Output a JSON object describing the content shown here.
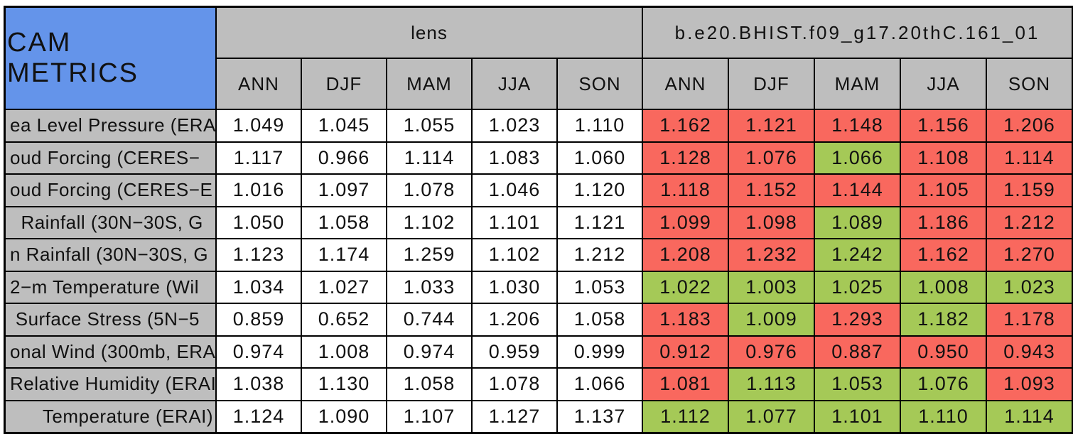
{
  "colors": {
    "title_bg": "#6494ea",
    "header_bg": "#bebebe",
    "white": "#ffffff",
    "red": "#f9685e",
    "green": "#a5c957",
    "border": "#000000",
    "text": "#111111"
  },
  "chart_data": {
    "type": "table",
    "title": "CAM METRICS",
    "column_groups": [
      "lens",
      "b.e20.BHIST.f09_g17.20thC.161_01"
    ],
    "seasons": [
      "ANN",
      "DJF",
      "MAM",
      "JJA",
      "SON"
    ],
    "rows": [
      {
        "label": "ea Level Pressure (ERA",
        "cells": [
          {
            "v": "1.049",
            "bg": "white"
          },
          {
            "v": "1.045",
            "bg": "white"
          },
          {
            "v": "1.055",
            "bg": "white"
          },
          {
            "v": "1.023",
            "bg": "white"
          },
          {
            "v": "1.110",
            "bg": "white"
          },
          {
            "v": "1.162",
            "bg": "red"
          },
          {
            "v": "1.121",
            "bg": "red"
          },
          {
            "v": "1.148",
            "bg": "red"
          },
          {
            "v": "1.156",
            "bg": "red"
          },
          {
            "v": "1.206",
            "bg": "red"
          }
        ]
      },
      {
        "label": "oud Forcing (CERES−",
        "cells": [
          {
            "v": "1.117",
            "bg": "white"
          },
          {
            "v": "0.966",
            "bg": "white"
          },
          {
            "v": "1.114",
            "bg": "white"
          },
          {
            "v": "1.083",
            "bg": "white"
          },
          {
            "v": "1.060",
            "bg": "white"
          },
          {
            "v": "1.128",
            "bg": "red"
          },
          {
            "v": "1.076",
            "bg": "red"
          },
          {
            "v": "1.066",
            "bg": "green"
          },
          {
            "v": "1.108",
            "bg": "red"
          },
          {
            "v": "1.114",
            "bg": "red"
          }
        ]
      },
      {
        "label": "oud Forcing (CERES−E",
        "cells": [
          {
            "v": "1.016",
            "bg": "white"
          },
          {
            "v": "1.097",
            "bg": "white"
          },
          {
            "v": "1.078",
            "bg": "white"
          },
          {
            "v": "1.046",
            "bg": "white"
          },
          {
            "v": "1.120",
            "bg": "white"
          },
          {
            "v": "1.118",
            "bg": "red"
          },
          {
            "v": "1.152",
            "bg": "red"
          },
          {
            "v": "1.144",
            "bg": "red"
          },
          {
            "v": "1.105",
            "bg": "red"
          },
          {
            "v": "1.159",
            "bg": "red"
          }
        ]
      },
      {
        "label": "  Rainfall (30N−30S, G",
        "cells": [
          {
            "v": "1.050",
            "bg": "white"
          },
          {
            "v": "1.058",
            "bg": "white"
          },
          {
            "v": "1.102",
            "bg": "white"
          },
          {
            "v": "1.101",
            "bg": "white"
          },
          {
            "v": "1.121",
            "bg": "white"
          },
          {
            "v": "1.099",
            "bg": "red"
          },
          {
            "v": "1.098",
            "bg": "red"
          },
          {
            "v": "1.089",
            "bg": "green"
          },
          {
            "v": "1.186",
            "bg": "red"
          },
          {
            "v": "1.212",
            "bg": "red"
          }
        ]
      },
      {
        "label": "n Rainfall (30N−30S, G",
        "cells": [
          {
            "v": "1.123",
            "bg": "white"
          },
          {
            "v": "1.174",
            "bg": "white"
          },
          {
            "v": "1.259",
            "bg": "white"
          },
          {
            "v": "1.102",
            "bg": "white"
          },
          {
            "v": "1.212",
            "bg": "white"
          },
          {
            "v": "1.208",
            "bg": "red"
          },
          {
            "v": "1.232",
            "bg": "red"
          },
          {
            "v": "1.242",
            "bg": "green"
          },
          {
            "v": "1.162",
            "bg": "red"
          },
          {
            "v": "1.270",
            "bg": "red"
          }
        ]
      },
      {
        "label": "2−m Temperature (Wil",
        "cells": [
          {
            "v": "1.034",
            "bg": "white"
          },
          {
            "v": "1.027",
            "bg": "white"
          },
          {
            "v": "1.033",
            "bg": "white"
          },
          {
            "v": "1.030",
            "bg": "white"
          },
          {
            "v": "1.053",
            "bg": "white"
          },
          {
            "v": "1.022",
            "bg": "green"
          },
          {
            "v": "1.003",
            "bg": "green"
          },
          {
            "v": "1.025",
            "bg": "green"
          },
          {
            "v": "1.008",
            "bg": "green"
          },
          {
            "v": "1.023",
            "bg": "green"
          }
        ]
      },
      {
        "label": " Surface Stress (5N−5",
        "cells": [
          {
            "v": "0.859",
            "bg": "white"
          },
          {
            "v": "0.652",
            "bg": "white"
          },
          {
            "v": "0.744",
            "bg": "white"
          },
          {
            "v": "1.206",
            "bg": "white"
          },
          {
            "v": "1.058",
            "bg": "white"
          },
          {
            "v": "1.183",
            "bg": "red"
          },
          {
            "v": "1.009",
            "bg": "green"
          },
          {
            "v": "1.293",
            "bg": "red"
          },
          {
            "v": "1.182",
            "bg": "green"
          },
          {
            "v": "1.178",
            "bg": "red"
          }
        ]
      },
      {
        "label": "onal Wind (300mb, ERA",
        "cells": [
          {
            "v": "0.974",
            "bg": "white"
          },
          {
            "v": "1.008",
            "bg": "white"
          },
          {
            "v": "0.974",
            "bg": "white"
          },
          {
            "v": "0.959",
            "bg": "white"
          },
          {
            "v": "0.999",
            "bg": "white"
          },
          {
            "v": "0.912",
            "bg": "red"
          },
          {
            "v": "0.976",
            "bg": "red"
          },
          {
            "v": "0.887",
            "bg": "red"
          },
          {
            "v": "0.950",
            "bg": "red"
          },
          {
            "v": "0.943",
            "bg": "red"
          }
        ]
      },
      {
        "label": "Relative Humidity (ERAI",
        "cells": [
          {
            "v": "1.038",
            "bg": "white"
          },
          {
            "v": "1.130",
            "bg": "white"
          },
          {
            "v": "1.058",
            "bg": "white"
          },
          {
            "v": "1.078",
            "bg": "white"
          },
          {
            "v": "1.066",
            "bg": "white"
          },
          {
            "v": "1.081",
            "bg": "red"
          },
          {
            "v": "1.113",
            "bg": "green"
          },
          {
            "v": "1.053",
            "bg": "green"
          },
          {
            "v": "1.076",
            "bg": "green"
          },
          {
            "v": "1.093",
            "bg": "red"
          }
        ]
      },
      {
        "label": "      Temperature (ERAI)",
        "cells": [
          {
            "v": "1.124",
            "bg": "white"
          },
          {
            "v": "1.090",
            "bg": "white"
          },
          {
            "v": "1.107",
            "bg": "white"
          },
          {
            "v": "1.127",
            "bg": "white"
          },
          {
            "v": "1.137",
            "bg": "white"
          },
          {
            "v": "1.112",
            "bg": "green"
          },
          {
            "v": "1.077",
            "bg": "green"
          },
          {
            "v": "1.101",
            "bg": "green"
          },
          {
            "v": "1.110",
            "bg": "green"
          },
          {
            "v": "1.114",
            "bg": "green"
          }
        ]
      }
    ]
  }
}
